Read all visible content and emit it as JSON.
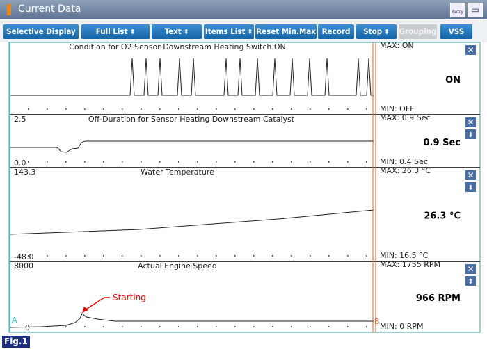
{
  "window": {
    "title": "Current Data",
    "retry": "Retry"
  },
  "toolbar": [
    "Selective Display",
    "Full List",
    "Text",
    "Items List",
    "Reset Min.Max",
    "Record",
    "Stop",
    "Grouping",
    "VSS"
  ],
  "panels": [
    {
      "title": "Condition for O2 Sensor Downstream Heating Switch ON",
      "max": "MAX: ON",
      "min": "MIN: OFF",
      "current": "ON"
    },
    {
      "title": "Off-Duration for Sensor Heating Downstream Catalyst",
      "axis_max": "2.5",
      "axis_min": "0.0",
      "max": "MAX:   0.9 Sec",
      "min": "MIN:   0.4 Sec",
      "current": "0.9 Sec"
    },
    {
      "title": "Water Temperature",
      "axis_max": "143.3",
      "axis_min": "-48.0",
      "max": "MAX:  26.3 °C",
      "min": "MIN:  16.5 °C",
      "current": "26.3 °C"
    },
    {
      "title": "Actual Engine Speed",
      "axis_max": "8000",
      "axis_min": "0",
      "max": "MAX:  1755 RPM",
      "min": "MIN:     0 RPM",
      "current": "966 RPM",
      "annotation": "Starting",
      "marker_a": "A",
      "marker_b": "B"
    }
  ],
  "figure_label": "Fig.1"
}
